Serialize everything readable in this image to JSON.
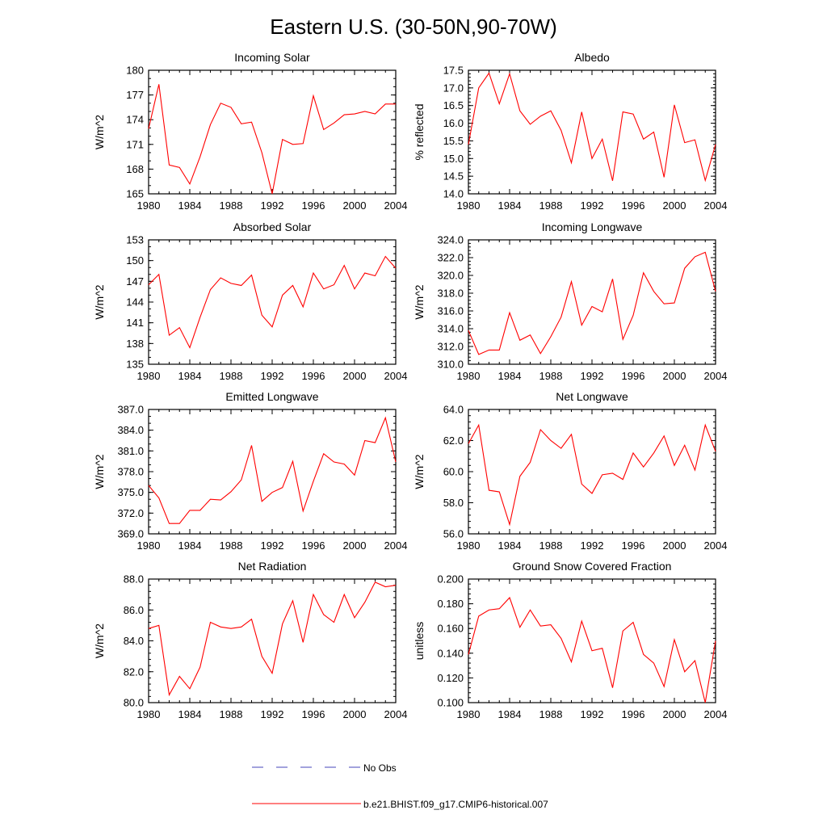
{
  "page_title": "Eastern U.S. (30-50N,90-70W)",
  "colors": {
    "model_line": "#ff0000",
    "obs_line": "#4444bb",
    "axis": "#000000"
  },
  "legend": [
    {
      "label": "No Obs",
      "style": "dashed",
      "color": "#4444bb"
    },
    {
      "label": "b.e21.BHIST.f09_g17.CMIP6-historical.007",
      "style": "solid",
      "color": "#ff0000"
    }
  ],
  "chart_data": [
    {
      "type": "line",
      "title": "Incoming Solar",
      "ylabel": "W/m^2",
      "xlim": [
        1980,
        2004
      ],
      "ylim": [
        165,
        180
      ],
      "xticks": [
        1980,
        1984,
        1988,
        1992,
        1996,
        2000,
        2004
      ],
      "yticks": [
        165,
        168,
        171,
        174,
        177,
        180
      ],
      "ytick_labels": [
        "165",
        "168",
        "171",
        "174",
        "177",
        "180"
      ],
      "ytick_minor_step": 1,
      "x": [
        1980,
        1981,
        1982,
        1983,
        1984,
        1985,
        1986,
        1987,
        1988,
        1989,
        1990,
        1991,
        1992,
        1993,
        1994,
        1995,
        1996,
        1997,
        1998,
        1999,
        2000,
        2001,
        2002,
        2003,
        2004
      ],
      "series": [
        {
          "name": "b.e21.BHIST.f09_g17.CMIP6-historical.007",
          "values": [
            172.9,
            178.3,
            168.5,
            168.2,
            166.2,
            169.5,
            173.4,
            176.0,
            175.5,
            173.5,
            173.7,
            170.0,
            165.0,
            171.6,
            171.0,
            171.1,
            176.9,
            172.8,
            173.6,
            174.6,
            174.7,
            175.0,
            174.7,
            175.9,
            175.9
          ]
        }
      ]
    },
    {
      "type": "line",
      "title": "Albedo",
      "ylabel": "% reflected",
      "xlim": [
        1980,
        2004
      ],
      "ylim": [
        14.0,
        17.5
      ],
      "xticks": [
        1980,
        1984,
        1988,
        1992,
        1996,
        2000,
        2004
      ],
      "yticks": [
        14.0,
        14.5,
        15.0,
        15.5,
        16.0,
        16.5,
        17.0,
        17.5
      ],
      "ytick_labels": [
        "14.0",
        "14.5",
        "15.0",
        "15.5",
        "16.0",
        "16.5",
        "17.0",
        "17.5"
      ],
      "ytick_minor_step": 0.1,
      "x": [
        1980,
        1981,
        1982,
        1983,
        1984,
        1985,
        1986,
        1987,
        1988,
        1989,
        1990,
        1991,
        1992,
        1993,
        1994,
        1995,
        1996,
        1997,
        1998,
        1999,
        2000,
        2001,
        2002,
        2003,
        2004
      ],
      "series": [
        {
          "name": "b.e21.BHIST.f09_g17.CMIP6-historical.007",
          "values": [
            15.4,
            17.0,
            17.42,
            16.55,
            17.4,
            16.35,
            15.97,
            16.2,
            16.35,
            15.8,
            14.88,
            16.32,
            15.0,
            15.55,
            14.37,
            16.32,
            16.26,
            15.55,
            15.75,
            14.47,
            16.52,
            15.45,
            15.53,
            14.38,
            15.4
          ]
        }
      ]
    },
    {
      "type": "line",
      "title": "Absorbed Solar",
      "ylabel": "W/m^2",
      "xlim": [
        1980,
        2004
      ],
      "ylim": [
        135,
        153
      ],
      "xticks": [
        1980,
        1984,
        1988,
        1992,
        1996,
        2000,
        2004
      ],
      "yticks": [
        135,
        138,
        141,
        144,
        147,
        150,
        153
      ],
      "ytick_labels": [
        "135",
        "138",
        "141",
        "144",
        "147",
        "150",
        "153"
      ],
      "ytick_minor_step": 1,
      "x": [
        1980,
        1981,
        1982,
        1983,
        1984,
        1985,
        1986,
        1987,
        1988,
        1989,
        1990,
        1991,
        1992,
        1993,
        1994,
        1995,
        1996,
        1997,
        1998,
        1999,
        2000,
        2001,
        2002,
        2003,
        2004
      ],
      "series": [
        {
          "name": "b.e21.BHIST.f09_g17.CMIP6-historical.007",
          "values": [
            146.5,
            148.0,
            139.2,
            140.3,
            137.4,
            141.8,
            145.8,
            147.5,
            146.7,
            146.4,
            147.9,
            142.1,
            140.4,
            145.0,
            146.4,
            143.3,
            148.2,
            145.9,
            146.5,
            149.3,
            145.9,
            148.2,
            147.8,
            150.6,
            148.9
          ]
        }
      ]
    },
    {
      "type": "line",
      "title": "Incoming Longwave",
      "ylabel": "W/m^2",
      "xlim": [
        1980,
        2004
      ],
      "ylim": [
        310.0,
        324.0
      ],
      "xticks": [
        1980,
        1984,
        1988,
        1992,
        1996,
        2000,
        2004
      ],
      "yticks": [
        310,
        312,
        314,
        316,
        318,
        320,
        322,
        324
      ],
      "ytick_labels": [
        "310.0",
        "312.0",
        "314.0",
        "316.0",
        "318.0",
        "320.0",
        "322.0",
        "324.0"
      ],
      "ytick_minor_step": 0.4,
      "x": [
        1980,
        1981,
        1982,
        1983,
        1984,
        1985,
        1986,
        1987,
        1988,
        1989,
        1990,
        1991,
        1992,
        1993,
        1994,
        1995,
        1996,
        1997,
        1998,
        1999,
        2000,
        2001,
        2002,
        2003,
        2004
      ],
      "series": [
        {
          "name": "b.e21.BHIST.f09_g17.CMIP6-historical.007",
          "values": [
            313.8,
            311.1,
            311.6,
            311.6,
            315.8,
            312.7,
            313.3,
            311.2,
            313.1,
            315.3,
            319.3,
            314.4,
            316.5,
            315.9,
            319.6,
            312.8,
            315.5,
            320.3,
            318.2,
            316.8,
            316.9,
            320.8,
            322.1,
            322.6,
            318.2
          ]
        }
      ]
    },
    {
      "type": "line",
      "title": "Emitted Longwave",
      "ylabel": "W/m^2",
      "xlim": [
        1980,
        2004
      ],
      "ylim": [
        369.0,
        387.0
      ],
      "xticks": [
        1980,
        1984,
        1988,
        1992,
        1996,
        2000,
        2004
      ],
      "yticks": [
        369,
        372,
        375,
        378,
        381,
        384,
        387
      ],
      "ytick_labels": [
        "369.0",
        "372.0",
        "375.0",
        "378.0",
        "381.0",
        "384.0",
        "387.0"
      ],
      "ytick_minor_step": 1,
      "x": [
        1980,
        1981,
        1982,
        1983,
        1984,
        1985,
        1986,
        1987,
        1988,
        1989,
        1990,
        1991,
        1992,
        1993,
        1994,
        1995,
        1996,
        1997,
        1998,
        1999,
        2000,
        2001,
        2002,
        2003,
        2004
      ],
      "series": [
        {
          "name": "b.e21.BHIST.f09_g17.CMIP6-historical.007",
          "values": [
            376.0,
            374.2,
            370.5,
            370.5,
            372.4,
            372.4,
            374.0,
            373.9,
            375.1,
            376.8,
            381.8,
            373.7,
            375.0,
            375.7,
            379.5,
            372.3,
            376.6,
            380.6,
            379.4,
            379.1,
            377.5,
            382.5,
            382.2,
            385.8,
            379.4
          ]
        }
      ]
    },
    {
      "type": "line",
      "title": "Net Longwave",
      "ylabel": "W/m^2",
      "xlim": [
        1980,
        2004
      ],
      "ylim": [
        56.0,
        64.0
      ],
      "xticks": [
        1980,
        1984,
        1988,
        1992,
        1996,
        2000,
        2004
      ],
      "yticks": [
        56,
        58,
        60,
        62,
        64
      ],
      "ytick_labels": [
        "56.0",
        "58.0",
        "60.0",
        "62.0",
        "64.0"
      ],
      "ytick_minor_step": 0.4,
      "x": [
        1980,
        1981,
        1982,
        1983,
        1984,
        1985,
        1986,
        1987,
        1988,
        1989,
        1990,
        1991,
        1992,
        1993,
        1994,
        1995,
        1996,
        1997,
        1998,
        1999,
        2000,
        2001,
        2002,
        2003,
        2004
      ],
      "series": [
        {
          "name": "b.e21.BHIST.f09_g17.CMIP6-historical.007",
          "values": [
            61.8,
            63.0,
            58.8,
            58.7,
            56.6,
            59.7,
            60.6,
            62.7,
            62.0,
            61.5,
            62.4,
            59.2,
            58.6,
            59.8,
            59.9,
            59.5,
            61.2,
            60.3,
            61.2,
            62.3,
            60.4,
            61.7,
            60.1,
            63.0,
            61.3
          ]
        }
      ]
    },
    {
      "type": "line",
      "title": "Net Radiation",
      "ylabel": "W/m^2",
      "xlim": [
        1980,
        2004
      ],
      "ylim": [
        80.0,
        88.0
      ],
      "xticks": [
        1980,
        1984,
        1988,
        1992,
        1996,
        2000,
        2004
      ],
      "yticks": [
        80,
        82,
        84,
        86,
        88
      ],
      "ytick_labels": [
        "80.0",
        "82.0",
        "84.0",
        "86.0",
        "88.0"
      ],
      "ytick_minor_step": 0.4,
      "x": [
        1980,
        1981,
        1982,
        1983,
        1984,
        1985,
        1986,
        1987,
        1988,
        1989,
        1990,
        1991,
        1992,
        1993,
        1994,
        1995,
        1996,
        1997,
        1998,
        1999,
        2000,
        2001,
        2002,
        2003,
        2004
      ],
      "series": [
        {
          "name": "b.e21.BHIST.f09_g17.CMIP6-historical.007",
          "values": [
            84.8,
            85.0,
            80.5,
            81.7,
            80.9,
            82.3,
            85.2,
            84.9,
            84.8,
            84.9,
            85.4,
            83.0,
            81.9,
            85.1,
            86.6,
            83.9,
            87.0,
            85.7,
            85.2,
            87.0,
            85.5,
            86.5,
            87.8,
            87.5,
            87.6
          ]
        }
      ]
    },
    {
      "type": "line",
      "title": "Ground Snow Covered Fraction",
      "ylabel": "unitless",
      "xlim": [
        1980,
        2004
      ],
      "ylim": [
        0.1,
        0.2
      ],
      "xticks": [
        1980,
        1984,
        1988,
        1992,
        1996,
        2000,
        2004
      ],
      "yticks": [
        0.1,
        0.12,
        0.14,
        0.16,
        0.18,
        0.2
      ],
      "ytick_labels": [
        "0.100",
        "0.120",
        "0.140",
        "0.160",
        "0.180",
        "0.200"
      ],
      "ytick_minor_step": 0.004,
      "x": [
        1980,
        1981,
        1982,
        1983,
        1984,
        1985,
        1986,
        1987,
        1988,
        1989,
        1990,
        1991,
        1992,
        1993,
        1994,
        1995,
        1996,
        1997,
        1998,
        1999,
        2000,
        2001,
        2002,
        2003,
        2004
      ],
      "series": [
        {
          "name": "b.e21.BHIST.f09_g17.CMIP6-historical.007",
          "values": [
            0.139,
            0.17,
            0.175,
            0.176,
            0.185,
            0.161,
            0.175,
            0.162,
            0.163,
            0.152,
            0.133,
            0.166,
            0.142,
            0.144,
            0.112,
            0.158,
            0.165,
            0.139,
            0.132,
            0.113,
            0.151,
            0.125,
            0.134,
            0.1,
            0.15
          ]
        }
      ]
    }
  ]
}
